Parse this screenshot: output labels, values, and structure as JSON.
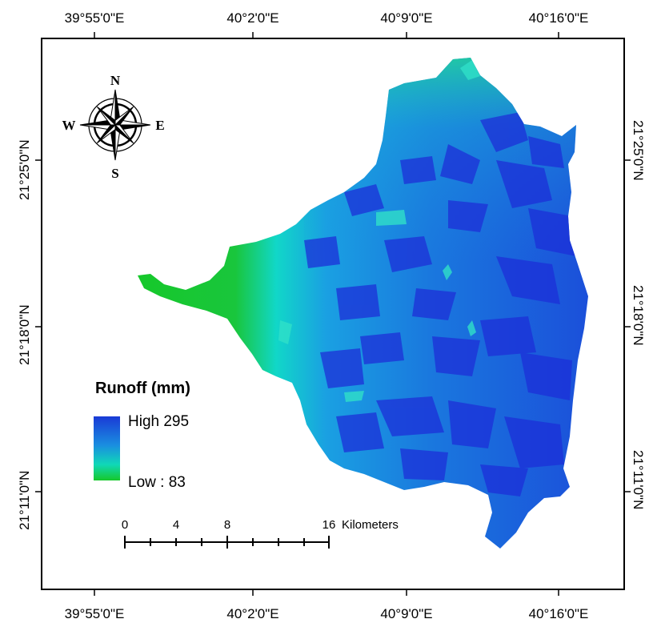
{
  "map": {
    "lon_labels": [
      "39°55'0\"E",
      "40°2'0\"E",
      "40°9'0\"E",
      "40°16'0\"E"
    ],
    "lat_labels": [
      "21°25'0\"N",
      "21°18'0\"N",
      "21°11'0\"N"
    ],
    "north_arrow": {
      "n": "N",
      "s": "S",
      "e": "E",
      "w": "W"
    },
    "legend": {
      "title": "Runoff (mm)",
      "high_label": "High 295",
      "low_label": "Low : 83",
      "colors": [
        "#1a3ad6",
        "#1a8ee0",
        "#10d8b8",
        "#16c82a"
      ]
    },
    "scale_bar": {
      "ticks": [
        "0",
        "4",
        "8",
        "16"
      ],
      "unit": "Kilometers"
    }
  }
}
